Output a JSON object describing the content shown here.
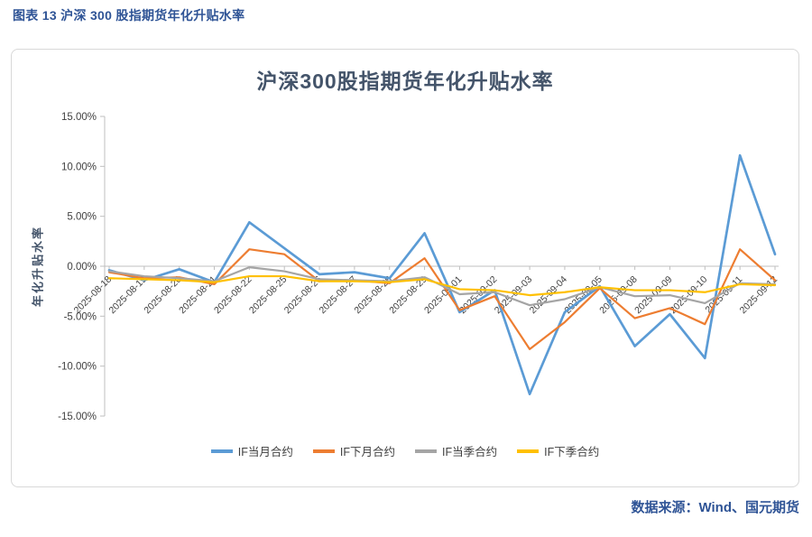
{
  "page": {
    "caption": "图表 13 沪深 300 股指期货年化升贴水率",
    "source": "数据来源：Wind、国元期货"
  },
  "colors": {
    "accent_blue": "#2F5496",
    "title_color": "#44546A",
    "axis_text": "#404040",
    "axis_line": "#BFBFBF",
    "border": "#D8D8D8"
  },
  "chart_data": {
    "type": "line",
    "title": "沪深300股指期货年化升贴水率",
    "ylabel": "年化升贴水率",
    "xlabel": "",
    "ylim": [
      -15,
      15
    ],
    "ytick_step": 5,
    "ytick_labels": [
      "15.00%",
      "10.00%",
      "5.00%",
      "0.00%",
      "-5.00%",
      "-10.00%",
      "-15.00%"
    ],
    "grid": false,
    "legend_position": "bottom",
    "categories": [
      "2025-08-18",
      "2025-08-19",
      "2025-08-20",
      "2025-08-21",
      "2025-08-22",
      "2025-08-25",
      "2025-08-26",
      "2025-08-27",
      "2025-08-28",
      "2025-08-29",
      "2025-09-01",
      "2025-09-02",
      "2025-09-03",
      "2025-09-04",
      "2025-09-05",
      "2025-09-08",
      "2025-09-09",
      "2025-09-10",
      "2025-09-11",
      "2025-09-12"
    ],
    "series": [
      {
        "name": "IF当月合约",
        "color": "#5B9BD5",
        "values": [
          -0.4,
          -1.4,
          -0.3,
          -1.6,
          4.4,
          1.8,
          -0.8,
          -0.6,
          -1.2,
          3.3,
          -4.6,
          -2.4,
          -12.8,
          -4.6,
          -2.0,
          -8.0,
          -4.8,
          -9.2,
          11.1,
          1.2
        ]
      },
      {
        "name": "IF下月合约",
        "color": "#ED7D31",
        "values": [
          -0.6,
          -1.2,
          -1.1,
          -1.8,
          1.7,
          1.2,
          -1.5,
          -1.4,
          -1.7,
          0.8,
          -4.4,
          -3.0,
          -8.3,
          -5.6,
          -2.2,
          -5.2,
          -4.2,
          -5.8,
          1.7,
          -1.4
        ]
      },
      {
        "name": "IF当季合约",
        "color": "#A5A5A5",
        "values": [
          -0.5,
          -1.0,
          -1.2,
          -1.5,
          -0.1,
          -0.5,
          -1.3,
          -1.4,
          -1.5,
          -1.1,
          -2.8,
          -2.6,
          -3.9,
          -3.3,
          -2.1,
          -3.0,
          -2.9,
          -3.7,
          -1.7,
          -1.8
        ]
      },
      {
        "name": "IF下季合约",
        "color": "#FFC000",
        "values": [
          -1.2,
          -1.3,
          -1.4,
          -1.6,
          -1.0,
          -1.0,
          -1.5,
          -1.5,
          -1.6,
          -1.3,
          -2.3,
          -2.4,
          -2.9,
          -2.6,
          -2.1,
          -2.4,
          -2.4,
          -2.6,
          -1.8,
          -1.9
        ]
      }
    ]
  }
}
